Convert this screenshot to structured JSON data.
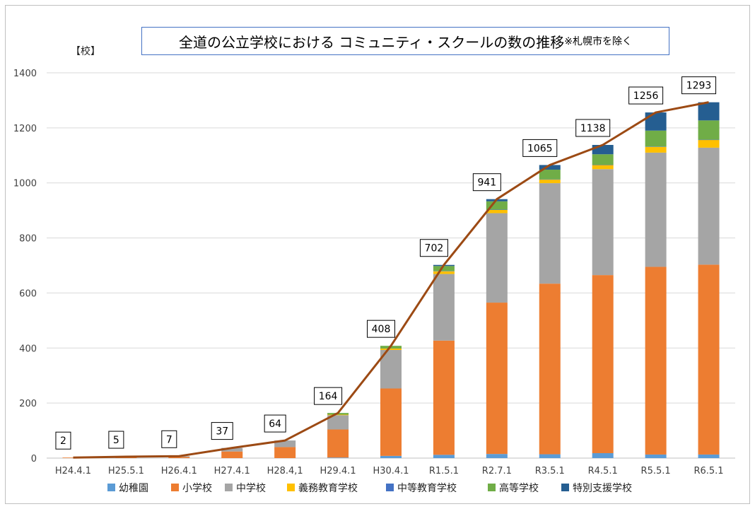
{
  "chart_data": {
    "type": "bar",
    "stacked": true,
    "title": "全道の公立学校における コミュニティ・スクールの数の推移",
    "title_note": "※札幌市を除く",
    "ylabel": "【校】",
    "xlabel": "",
    "ylim": [
      0,
      1400
    ],
    "yticks": [
      0,
      200,
      400,
      600,
      800,
      1000,
      1200,
      1400
    ],
    "grid": true,
    "legend_position": "bottom",
    "categories": [
      "H24.4.1",
      "H25.5.1",
      "H26.4.1",
      "H27.4.1",
      "H28.4,1",
      "H29.4.1",
      "H30.4.1",
      "R1.5.1",
      "R2.7.1",
      "R3.5.1",
      "R4.5.1",
      "R5.5.1",
      "R6.5.1"
    ],
    "series": [
      {
        "name": "幼稚園",
        "color": "#5b9bd5",
        "values": [
          0,
          0,
          0,
          0,
          0,
          2,
          8,
          12,
          15,
          14,
          18,
          13,
          13
        ]
      },
      {
        "name": "小学校",
        "color": "#ed7d31",
        "values": [
          2,
          3,
          4,
          24,
          40,
          102,
          245,
          415,
          550,
          620,
          647,
          682,
          690
        ]
      },
      {
        "name": "中学校",
        "color": "#a5a5a5",
        "values": [
          0,
          2,
          3,
          13,
          24,
          52,
          140,
          242,
          325,
          365,
          385,
          415,
          425
        ]
      },
      {
        "name": "義務教育学校",
        "color": "#ffc000",
        "values": [
          0,
          0,
          0,
          0,
          0,
          2,
          5,
          10,
          12,
          13,
          15,
          21,
          28
        ]
      },
      {
        "name": "中等教育学校",
        "color": "#4472c4",
        "values": [
          0,
          0,
          0,
          0,
          0,
          0,
          0,
          1,
          1,
          1,
          1,
          1,
          1
        ]
      },
      {
        "name": "高等学校",
        "color": "#70ad47",
        "values": [
          0,
          0,
          0,
          0,
          0,
          6,
          10,
          18,
          30,
          35,
          38,
          58,
          70
        ]
      },
      {
        "name": "特別支援学校",
        "color": "#255e91",
        "values": [
          0,
          0,
          0,
          0,
          0,
          0,
          0,
          4,
          8,
          17,
          34,
          66,
          66
        ]
      }
    ],
    "totals_line": {
      "color": "#9c4a14",
      "values": [
        2,
        5,
        7,
        37,
        64,
        164,
        408,
        702,
        941,
        1065,
        1138,
        1256,
        1293
      ]
    }
  }
}
